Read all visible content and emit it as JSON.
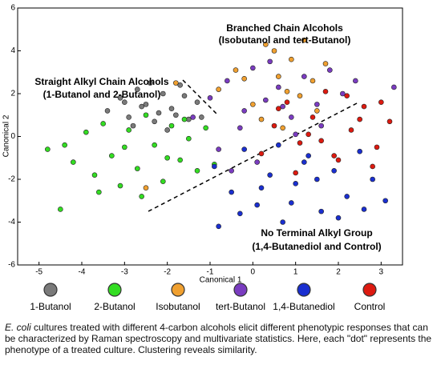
{
  "chart_data": {
    "type": "scatter",
    "x_label": "Canonical 1",
    "y_label": "Canonical 2",
    "xlim": [
      -5.5,
      3.5
    ],
    "xticks": [
      -5,
      -4,
      -3,
      -2,
      -1,
      0,
      1,
      2,
      3
    ],
    "ylim": [
      -6,
      6
    ],
    "yticks": [
      -6,
      -4,
      -2,
      0,
      2,
      4,
      6
    ],
    "annotations": [
      {
        "line1": "Branched Chain Alcohols",
        "line2": "(Isobutanol and tert-Butanol)"
      },
      {
        "line1": "Straight Alkyl Chain Alcohols",
        "line2": "(1-Butanol and 2-Butanol)"
      },
      {
        "line1": "No Terminal Alkyl Group",
        "line2": "(1,4-Butanediol and Control)"
      }
    ],
    "series": [
      {
        "name": "1-Butanol",
        "color": "#7a7a7a",
        "x": [
          -3.4,
          -3.1,
          -2.9,
          -2.7,
          -2.5,
          -2.3,
          -2.1,
          -1.9,
          -1.7,
          -1.5,
          -1.3,
          -2.8,
          -2.2,
          -1.6,
          -3.0,
          -2.0,
          -1.2,
          -2.6,
          -1.8,
          -2.4
        ],
        "values": [
          1.2,
          1.8,
          0.9,
          2.2,
          1.5,
          0.7,
          2.0,
          1.3,
          2.4,
          0.8,
          1.6,
          0.5,
          1.1,
          1.9,
          1.6,
          0.3,
          0.9,
          1.4,
          1.0,
          2.5
        ]
      },
      {
        "name": "2-Butanol",
        "color": "#33dd22",
        "x": [
          -4.8,
          -4.5,
          -4.2,
          -3.9,
          -3.7,
          -3.5,
          -3.3,
          -3.1,
          -2.9,
          -2.7,
          -2.5,
          -2.3,
          -2.1,
          -1.9,
          -1.7,
          -1.5,
          -1.3,
          -1.1,
          -4.4,
          -3.0,
          -2.0,
          -2.6,
          -3.6,
          -1.6,
          -0.9
        ],
        "values": [
          -0.6,
          -3.4,
          -1.2,
          0.2,
          -1.8,
          0.6,
          -0.9,
          -2.3,
          0.3,
          -1.5,
          1.0,
          -0.4,
          -2.1,
          0.5,
          -1.1,
          -0.1,
          -1.6,
          0.4,
          -0.4,
          -0.5,
          -1.0,
          -2.8,
          -2.6,
          0.8,
          -1.3
        ]
      },
      {
        "name": "Isobutanol",
        "color": "#f0a030",
        "x": [
          -0.8,
          -0.4,
          0.0,
          0.3,
          0.6,
          0.9,
          1.1,
          1.4,
          1.7,
          0.2,
          0.5,
          0.8,
          -0.2,
          1.2,
          0.7,
          -1.8,
          -2.5,
          1.5
        ],
        "values": [
          2.2,
          3.1,
          1.5,
          4.3,
          2.8,
          3.6,
          1.9,
          2.6,
          3.4,
          0.8,
          4.0,
          2.1,
          2.7,
          4.5,
          0.4,
          2.5,
          -2.4,
          1.2
        ]
      },
      {
        "name": "tert-Butanol",
        "color": "#7a3cc0",
        "x": [
          -1.4,
          -1.0,
          -0.6,
          -0.3,
          0.0,
          0.3,
          0.6,
          0.9,
          1.2,
          1.5,
          1.8,
          2.1,
          -0.8,
          0.4,
          1.0,
          0.1,
          -0.2,
          1.6,
          0.7,
          2.4,
          3.3,
          -0.5
        ],
        "values": [
          0.9,
          1.8,
          2.6,
          0.4,
          3.2,
          1.7,
          2.3,
          0.9,
          2.8,
          1.5,
          3.1,
          2.0,
          -0.6,
          3.5,
          0.1,
          -1.2,
          1.2,
          0.5,
          1.4,
          2.6,
          2.3,
          -1.6
        ]
      },
      {
        "name": "1,4-Butanediol",
        "color": "#1a2fd0",
        "x": [
          -0.9,
          -0.5,
          -0.2,
          0.1,
          0.4,
          0.7,
          1.0,
          1.3,
          1.6,
          1.9,
          2.2,
          2.5,
          2.8,
          3.1,
          0.2,
          0.9,
          1.5,
          2.0,
          -0.3,
          1.2,
          0.6,
          2.6,
          -0.8
        ],
        "values": [
          -1.4,
          -2.6,
          -0.6,
          -3.2,
          -1.8,
          -4.0,
          -2.2,
          -0.9,
          -3.5,
          -1.6,
          -2.8,
          -0.7,
          -2.0,
          -3.0,
          -2.4,
          -3.1,
          -2.0,
          -3.8,
          -3.6,
          -1.2,
          -0.4,
          -3.4,
          -4.2
        ]
      },
      {
        "name": "Control",
        "color": "#dd1a10",
        "x": [
          0.2,
          0.5,
          0.8,
          1.1,
          1.4,
          1.7,
          2.0,
          2.3,
          2.6,
          2.9,
          3.2,
          1.0,
          1.6,
          2.2,
          2.8,
          0.6,
          1.3,
          1.9,
          2.5,
          3.0
        ],
        "values": [
          -0.8,
          0.5,
          1.6,
          -0.3,
          0.9,
          2.1,
          -1.1,
          0.3,
          1.4,
          -0.5,
          0.7,
          -1.7,
          -0.2,
          1.9,
          -1.4,
          1.3,
          0.1,
          -0.9,
          0.8,
          1.6
        ]
      }
    ],
    "caption": {
      "lead": "E. coli",
      "text": "cultures treated with different 4-carbon alcohols elicit different phenotypic responses that can be characterized by Raman spectroscopy and multivariate statistics.  Here, each \"dot\" represents the phenotype of a treated culture.  Clustering reveals similarity."
    }
  }
}
